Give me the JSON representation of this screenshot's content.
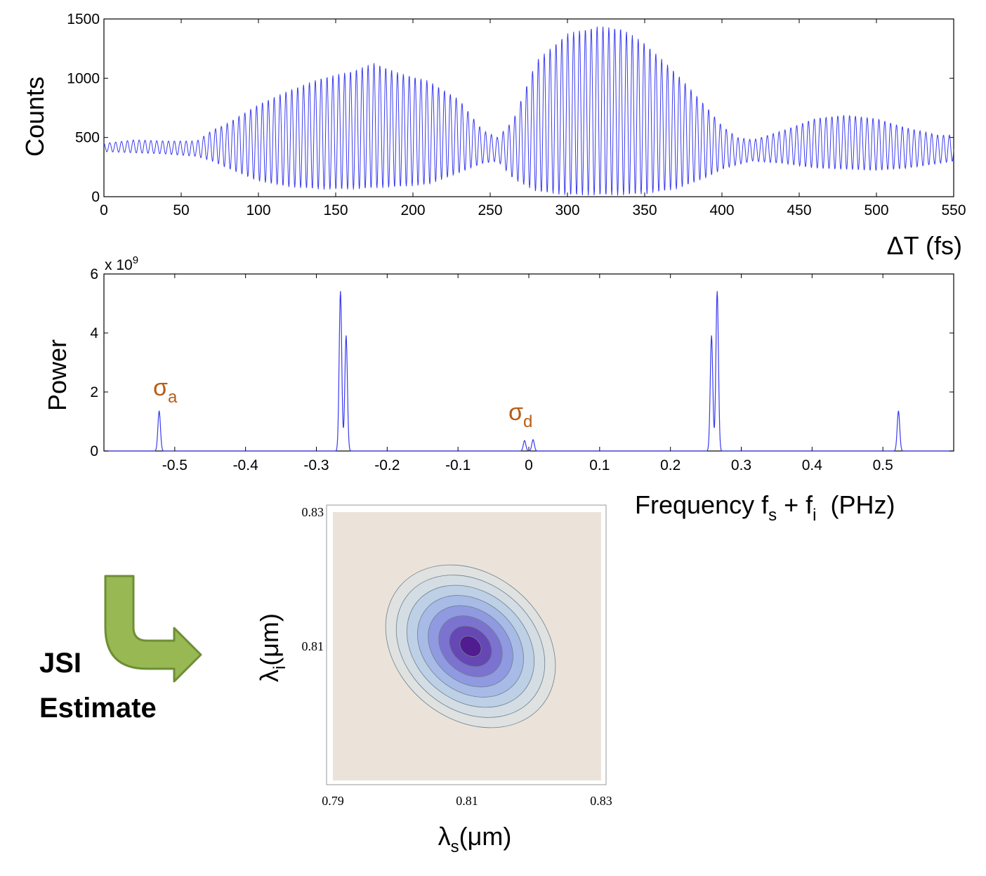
{
  "colors": {
    "trace": "#3b3bf0",
    "annotation": "#b85c14",
    "arrow_fill": "#97b853",
    "arrow_stroke": "#6e8e34",
    "contour_bg": "#ebe3d9"
  },
  "chart_data": [
    {
      "type": "line",
      "title": "",
      "xlabel": "ΔT (fs)",
      "ylabel": "Counts",
      "xlim": [
        0,
        550
      ],
      "ylim": [
        0,
        1500
      ],
      "xticks": [
        "0",
        "50",
        "100",
        "150",
        "200",
        "250",
        "300",
        "350",
        "400",
        "450",
        "500",
        "550"
      ],
      "yticks": [
        "0",
        "500",
        "1000",
        "1500"
      ],
      "grid": false,
      "series": [
        {
          "oscillation_period_fs": 3.8,
          "x": [
            0,
            20,
            40,
            60,
            70,
            80,
            100,
            120,
            140,
            160,
            175,
            190,
            210,
            230,
            245,
            255,
            265,
            280,
            300,
            320,
            335,
            350,
            370,
            390,
            400,
            410,
            420,
            440,
            460,
            480,
            500,
            520,
            540,
            550
          ],
          "y_min": [
            380,
            370,
            360,
            340,
            300,
            240,
            130,
            80,
            60,
            60,
            70,
            80,
            100,
            200,
            280,
            300,
            150,
            40,
            10,
            10,
            10,
            20,
            60,
            160,
            230,
            270,
            300,
            280,
            240,
            230,
            220,
            240,
            280,
            300
          ],
          "y_max": [
            450,
            480,
            470,
            470,
            560,
            620,
            780,
            900,
            1000,
            1060,
            1130,
            1050,
            980,
            820,
            560,
            500,
            650,
            1150,
            1380,
            1440,
            1420,
            1300,
            1050,
            760,
            600,
            500,
            480,
            560,
            660,
            690,
            660,
            580,
            520,
            520
          ]
        }
      ]
    },
    {
      "type": "line",
      "title": "",
      "xlabel": "Frequency f_s + f_i (PHz)",
      "ylabel": "Power",
      "y_multiplier": "x 10^9",
      "xlim": [
        -0.6,
        0.6
      ],
      "ylim": [
        0,
        6
      ],
      "xticks": [
        "-0.5",
        "-0.4",
        "-0.3",
        "-0.2",
        "-0.1",
        "0",
        "0.1",
        "0.2",
        "0.3",
        "0.4",
        "0.5"
      ],
      "yticks": [
        "0",
        "2",
        "4",
        "6"
      ],
      "grid": false,
      "series": [
        {
          "peaks": [
            {
              "x": -0.522,
              "y": 1.35
            },
            {
              "x": -0.266,
              "y": 5.4
            },
            {
              "x": -0.258,
              "y": 3.9
            },
            {
              "x": -0.006,
              "y": 0.35
            },
            {
              "x": 0.006,
              "y": 0.38
            },
            {
              "x": 0.258,
              "y": 3.9
            },
            {
              "x": 0.266,
              "y": 5.4
            },
            {
              "x": 0.522,
              "y": 1.35
            }
          ]
        }
      ],
      "annotations": [
        {
          "symbol": "σ",
          "subscript": "a",
          "near_x": -0.52
        },
        {
          "symbol": "σ",
          "subscript": "d",
          "near_x": 0.0
        }
      ]
    },
    {
      "type": "heatmap",
      "title": "",
      "xlabel": "λs(μm)",
      "ylabel": "λi(μm)",
      "xlim": [
        0.79,
        0.83
      ],
      "ylim": [
        0.79,
        0.83
      ],
      "xticks": [
        "0.79",
        "0.81",
        "0.83"
      ],
      "yticks": [
        "0.83",
        "0.81"
      ],
      "center": [
        0.81,
        0.81
      ],
      "levels": 8,
      "level_colors": [
        "#dfe2e0",
        "#d3dde3",
        "#bdd0e6",
        "#a8bbe6",
        "#8f9ae0",
        "#7b73cf",
        "#6648b5",
        "#511c90"
      ]
    }
  ],
  "labels": {
    "top_ylabel": "Counts",
    "top_xlabel": "ΔT (fs)",
    "mid_ylabel": "Power",
    "mid_multiplier_base": "x 10",
    "mid_multiplier_exp": "9",
    "mid_xlabel_main": "Frequency f",
    "mid_xlabel_sub1": "s",
    "mid_xlabel_plus": " + f",
    "mid_xlabel_sub2": "i",
    "mid_xlabel_unit": "  (PHz)",
    "sigma": "σ",
    "sigma_a_sub": "a",
    "sigma_d_sub": "d",
    "jsi_line1": "JSI",
    "jsi_line2": "Estimate",
    "lambda": "λ",
    "lam_s_sub": "s",
    "lam_i_sub": "i",
    "micron": "(μm)"
  }
}
